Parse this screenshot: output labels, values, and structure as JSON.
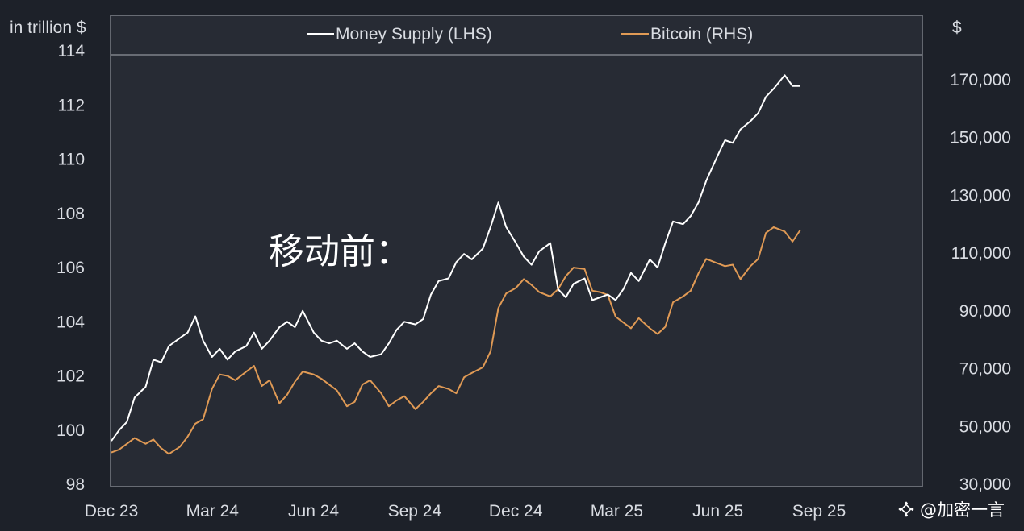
{
  "chart_data": {
    "type": "line",
    "left_axis": {
      "title": "in trillion $",
      "ticks": [
        "114",
        "112",
        "110",
        "108",
        "106",
        "104",
        "102",
        "100",
        "98"
      ],
      "ylim": [
        98,
        114
      ]
    },
    "right_axis": {
      "title": "$",
      "ticks": [
        "170,000",
        "150,000",
        "130,000",
        "110,000",
        "90,000",
        "70,000",
        "50,000",
        "30,000"
      ],
      "ylim": [
        30000,
        180000
      ]
    },
    "x_ticks": [
      "Dec 23",
      "Mar 24",
      "Jun 24",
      "Sep 24",
      "Dec 24",
      "Mar 25",
      "Jun 25",
      "Sep 25"
    ],
    "legend_position": "top-center",
    "grid": false,
    "annotation": "移动前：",
    "series": [
      {
        "name": "Money Supply (LHS)",
        "axis": "left",
        "color": "#ffffff",
        "x": [
          "2023-12-01",
          "2023-12-08",
          "2023-12-15",
          "2023-12-22",
          "2024-01-01",
          "2024-01-08",
          "2024-01-15",
          "2024-01-22",
          "2024-02-01",
          "2024-02-08",
          "2024-02-15",
          "2024-02-22",
          "2024-03-01",
          "2024-03-08",
          "2024-03-15",
          "2024-03-22",
          "2024-04-01",
          "2024-04-08",
          "2024-04-15",
          "2024-04-22",
          "2024-05-01",
          "2024-05-08",
          "2024-05-15",
          "2024-05-22",
          "2024-06-01",
          "2024-06-08",
          "2024-06-15",
          "2024-06-22",
          "2024-07-01",
          "2024-07-08",
          "2024-07-15",
          "2024-07-22",
          "2024-08-01",
          "2024-08-08",
          "2024-08-15",
          "2024-08-22",
          "2024-09-01",
          "2024-09-08",
          "2024-09-15",
          "2024-09-22",
          "2024-10-01",
          "2024-10-08",
          "2024-10-15",
          "2024-10-22",
          "2024-11-01",
          "2024-11-08",
          "2024-11-15",
          "2024-11-22",
          "2024-12-01",
          "2024-12-08",
          "2024-12-15",
          "2024-12-22",
          "2025-01-01",
          "2025-01-08",
          "2025-01-15",
          "2025-01-22",
          "2025-02-01",
          "2025-02-08",
          "2025-02-15",
          "2025-02-22",
          "2025-03-01",
          "2025-03-08",
          "2025-03-15",
          "2025-03-22",
          "2025-04-01",
          "2025-04-08",
          "2025-04-15",
          "2025-04-22",
          "2025-05-01",
          "2025-05-08",
          "2025-05-15",
          "2025-05-22",
          "2025-06-01",
          "2025-06-08",
          "2025-06-15",
          "2025-06-22",
          "2025-07-01",
          "2025-07-08",
          "2025-07-15",
          "2025-07-22",
          "2025-08-01",
          "2025-08-08",
          "2025-08-15"
        ],
        "values": [
          99.6,
          100.0,
          100.3,
          101.2,
          101.6,
          102.6,
          102.5,
          103.1,
          103.4,
          103.6,
          104.2,
          103.3,
          102.7,
          103.0,
          102.6,
          102.9,
          103.1,
          103.6,
          103.0,
          103.3,
          103.8,
          104.0,
          103.8,
          104.4,
          103.6,
          103.3,
          103.2,
          103.3,
          103.0,
          103.2,
          102.9,
          102.7,
          102.8,
          103.2,
          103.7,
          104.0,
          103.9,
          104.1,
          105.0,
          105.5,
          105.6,
          106.2,
          106.5,
          106.3,
          106.7,
          107.5,
          108.4,
          107.5,
          106.9,
          106.4,
          106.1,
          106.6,
          106.9,
          105.2,
          104.9,
          105.4,
          105.6,
          104.8,
          104.9,
          105.0,
          104.8,
          105.2,
          105.8,
          105.5,
          106.3,
          106.0,
          106.9,
          107.7,
          107.6,
          107.9,
          108.4,
          109.2,
          110.1,
          110.7,
          110.6,
          111.1,
          111.4,
          111.7,
          112.3,
          112.6,
          113.1,
          112.7,
          112.7
        ]
      },
      {
        "name": "Bitcoin (RHS)",
        "axis": "right",
        "color": "#e09a55",
        "x": [
          "2023-12-01",
          "2023-12-08",
          "2023-12-15",
          "2023-12-22",
          "2024-01-01",
          "2024-01-08",
          "2024-01-15",
          "2024-01-22",
          "2024-02-01",
          "2024-02-08",
          "2024-02-15",
          "2024-02-22",
          "2024-03-01",
          "2024-03-08",
          "2024-03-15",
          "2024-03-22",
          "2024-04-01",
          "2024-04-08",
          "2024-04-15",
          "2024-04-22",
          "2024-05-01",
          "2024-05-08",
          "2024-05-15",
          "2024-05-22",
          "2024-06-01",
          "2024-06-08",
          "2024-06-15",
          "2024-06-22",
          "2024-07-01",
          "2024-07-08",
          "2024-07-15",
          "2024-07-22",
          "2024-08-01",
          "2024-08-08",
          "2024-08-15",
          "2024-08-22",
          "2024-09-01",
          "2024-09-08",
          "2024-09-15",
          "2024-09-22",
          "2024-10-01",
          "2024-10-08",
          "2024-10-15",
          "2024-10-22",
          "2024-11-01",
          "2024-11-08",
          "2024-11-15",
          "2024-11-22",
          "2024-12-01",
          "2024-12-08",
          "2024-12-15",
          "2024-12-22",
          "2025-01-01",
          "2025-01-08",
          "2025-01-15",
          "2025-01-22",
          "2025-02-01",
          "2025-02-08",
          "2025-02-15",
          "2025-02-22",
          "2025-03-01",
          "2025-03-08",
          "2025-03-15",
          "2025-03-22",
          "2025-04-01",
          "2025-04-08",
          "2025-04-15",
          "2025-04-22",
          "2025-05-01",
          "2025-05-08",
          "2025-05-15",
          "2025-05-22",
          "2025-06-01",
          "2025-06-08",
          "2025-06-15",
          "2025-06-22",
          "2025-07-01",
          "2025-07-08",
          "2025-07-15",
          "2025-07-22",
          "2025-08-01",
          "2025-08-08",
          "2025-08-15"
        ],
        "values": [
          41000,
          42000,
          44000,
          46000,
          44000,
          45500,
          42500,
          40500,
          43000,
          46500,
          51000,
          52500,
          63000,
          68000,
          67500,
          66000,
          69000,
          71000,
          64000,
          66000,
          58000,
          61000,
          65500,
          69000,
          68000,
          66500,
          64500,
          62500,
          57000,
          58500,
          64500,
          66000,
          61500,
          57000,
          59000,
          60500,
          56000,
          58500,
          61500,
          64000,
          63000,
          61500,
          67000,
          68500,
          70500,
          76000,
          91000,
          96000,
          98000,
          101000,
          99000,
          96500,
          95000,
          97500,
          102000,
          105000,
          104500,
          97000,
          96500,
          95500,
          88000,
          86000,
          84000,
          87500,
          84000,
          82000,
          84500,
          93000,
          95000,
          97000,
          103000,
          108000,
          106500,
          105500,
          106000,
          101000,
          105500,
          108000,
          117000,
          119000,
          117500,
          114000,
          118000
        ]
      }
    ]
  },
  "watermark": "@加密一言"
}
